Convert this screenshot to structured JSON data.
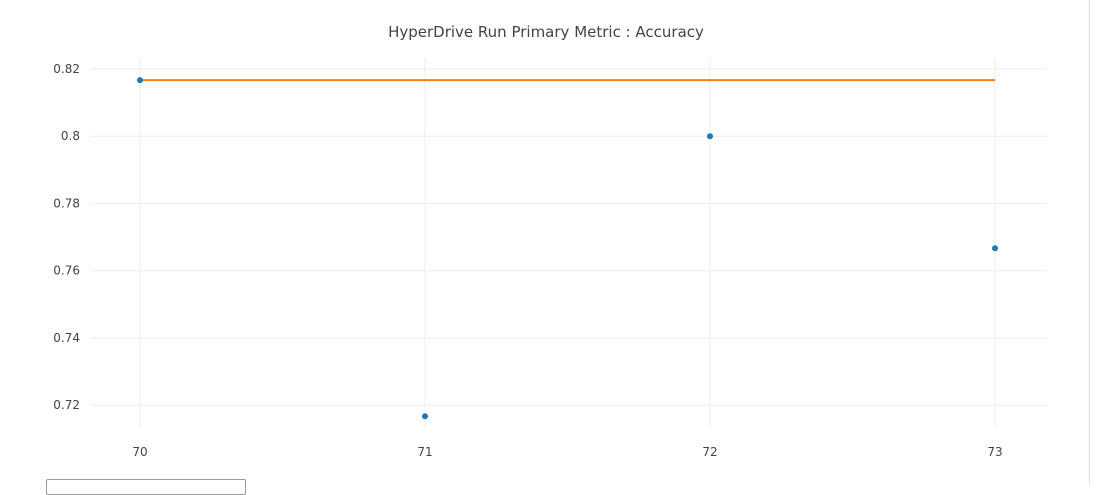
{
  "chart_data": {
    "type": "scatter",
    "title": "HyperDrive Run Primary Metric : Accuracy",
    "xlabel": "",
    "ylabel": "",
    "x_ticks": [
      70,
      71,
      72,
      73
    ],
    "y_ticks": [
      "0.72",
      "0.74",
      "0.76",
      "0.78",
      "0.8",
      "0.82"
    ],
    "xlim": [
      70,
      73.2
    ],
    "ylim": [
      0.7105,
      0.8235
    ],
    "grid": true,
    "series": [
      {
        "type": "scatter",
        "color": "#1f77b4",
        "x": [
          70,
          71,
          72,
          73
        ],
        "y": [
          0.8167,
          0.7167,
          0.8,
          0.7667
        ]
      },
      {
        "type": "line",
        "color": "#ff7f0e",
        "x": [
          70,
          73
        ],
        "y": [
          0.8167,
          0.8167
        ]
      }
    ]
  }
}
